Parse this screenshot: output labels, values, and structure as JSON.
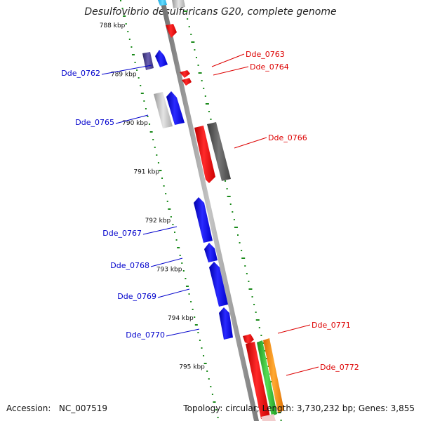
{
  "title": "Desulfovibrio desulfuricans G20, complete genome",
  "footer": {
    "accession_label": "Accession:",
    "accession": "NC_007519",
    "topology_label": "Topology:",
    "topology": "circular",
    "length_label": "Length:",
    "length": "3,730,232 bp",
    "genes_label": "Genes:",
    "genes": "3,855"
  },
  "ticks": [
    {
      "label": "788 kbp",
      "kbp": 788
    },
    {
      "label": "789 kbp",
      "kbp": 789
    },
    {
      "label": "790 kbp",
      "kbp": 790
    },
    {
      "label": "791 kbp",
      "kbp": 791
    },
    {
      "label": "792 kbp",
      "kbp": 792
    },
    {
      "label": "793 kbp",
      "kbp": 793
    },
    {
      "label": "794 kbp",
      "kbp": 794
    },
    {
      "label": "795 kbp",
      "kbp": 795
    }
  ],
  "reverse_genes": [
    {
      "id": "Dde_0762",
      "label": "Dde_0762"
    },
    {
      "id": "Dde_0765",
      "label": "Dde_0765"
    },
    {
      "id": "Dde_0767",
      "label": "Dde_0767"
    },
    {
      "id": "Dde_0768",
      "label": "Dde_0768"
    },
    {
      "id": "Dde_0769",
      "label": "Dde_0769"
    },
    {
      "id": "Dde_0770",
      "label": "Dde_0770"
    }
  ],
  "forward_genes": [
    {
      "id": "Dde_0763",
      "label": "Dde_0763"
    },
    {
      "id": "Dde_0764",
      "label": "Dde_0764"
    },
    {
      "id": "Dde_0766",
      "label": "Dde_0766"
    },
    {
      "id": "Dde_0771",
      "label": "Dde_0771"
    },
    {
      "id": "Dde_0772",
      "label": "Dde_0772"
    }
  ],
  "colors": {
    "backbone": "#8a8a8a",
    "reverse_strand": "#0000ee",
    "forward_strand": "#ee0000",
    "gc_dots": "#1a8a1a",
    "reverse_label": "#0000cc",
    "forward_label": "#dd0000",
    "pseudo_dark": "#555555",
    "pseudo_light": "#bbbbbb",
    "rna_green": "#33bb33",
    "rna_orange": "#ff8800",
    "slate": "#4a3f8c"
  }
}
